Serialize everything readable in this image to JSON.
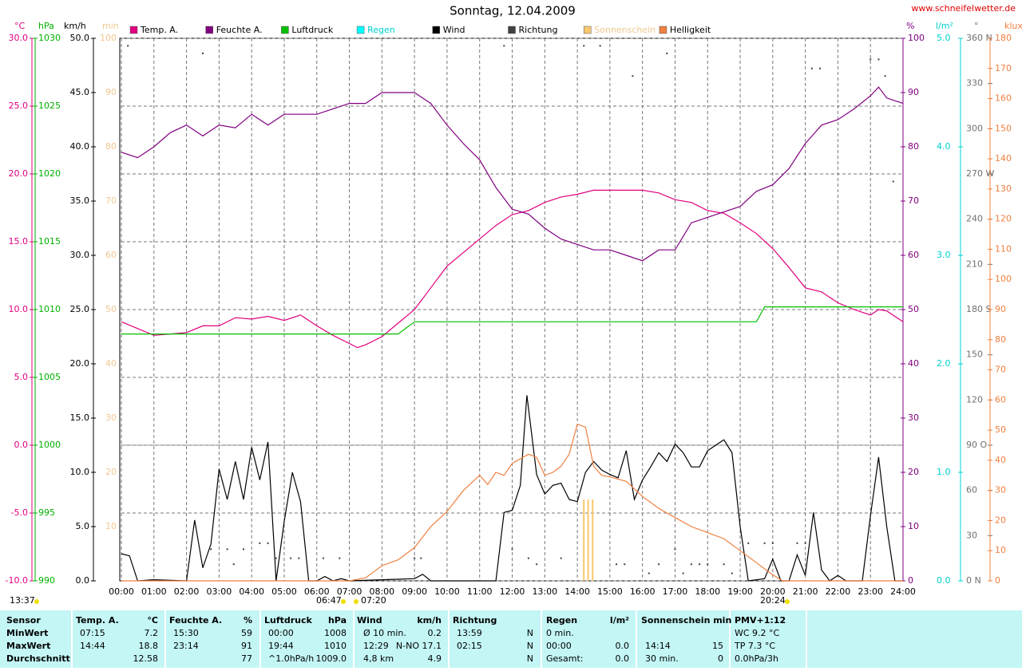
{
  "chart_data": {
    "type": "line",
    "title": "Sonntag, 12.04.2009",
    "source": "www.schneifelwetter.de",
    "grid": true,
    "xlim": [
      0,
      24
    ],
    "xticks": [
      {
        "value": 0,
        "label": "00:00"
      },
      {
        "value": 1,
        "label": "01:00"
      },
      {
        "value": 2,
        "label": "02:00"
      },
      {
        "value": 3,
        "label": "03:00"
      },
      {
        "value": 4,
        "label": "04:00"
      },
      {
        "value": 5,
        "label": "05:00"
      },
      {
        "value": 6,
        "label": "06:00"
      },
      {
        "value": 7,
        "label": "07:00"
      },
      {
        "value": 8,
        "label": "08:00"
      },
      {
        "value": 9,
        "label": "09:00"
      },
      {
        "value": 10,
        "label": "10:00"
      },
      {
        "value": 11,
        "label": "11:00"
      },
      {
        "value": 12,
        "label": "12:00"
      },
      {
        "value": 13,
        "label": "13:00"
      },
      {
        "value": 14,
        "label": "14:00"
      },
      {
        "value": 15,
        "label": "15:00"
      },
      {
        "value": 16,
        "label": "16:00"
      },
      {
        "value": 17,
        "label": "17:00"
      },
      {
        "value": 18,
        "label": "18:00"
      },
      {
        "value": 19,
        "label": "19:00"
      },
      {
        "value": 20,
        "label": "20:00"
      },
      {
        "value": 21,
        "label": "21:00"
      },
      {
        "value": 22,
        "label": "22:00"
      },
      {
        "value": 23,
        "label": "23:00"
      },
      {
        "value": 24,
        "label": "24:00"
      }
    ],
    "axes": {
      "temp": {
        "label": "°C",
        "color": "#e0007f",
        "lim": [
          -10,
          30
        ],
        "ticks": [
          {
            "value": 30,
            "label": "30.0"
          },
          {
            "value": 25,
            "label": "25.0"
          },
          {
            "value": 20,
            "label": "20.0"
          },
          {
            "value": 15,
            "label": "15.0"
          },
          {
            "value": 10,
            "label": "10.0"
          },
          {
            "value": 5,
            "label": "5.0"
          },
          {
            "value": 0,
            "label": "0.0"
          },
          {
            "value": -5,
            "label": "-5.0"
          },
          {
            "value": -10,
            "label": "-10.0"
          }
        ]
      },
      "hpa": {
        "label": "hPa",
        "color": "#00b000",
        "lim": [
          990,
          1030
        ],
        "ticks": [
          1030,
          1025,
          1020,
          1015,
          1010,
          1005,
          1000,
          995,
          990
        ]
      },
      "kmh": {
        "label": "km/h",
        "color": "#000000",
        "lim": [
          0,
          50
        ],
        "ticks": [
          {
            "value": 50,
            "label": "50.0"
          },
          {
            "value": 45,
            "label": "45.0"
          },
          {
            "value": 40,
            "label": "40.0"
          },
          {
            "value": 35,
            "label": "35.0"
          },
          {
            "value": 30,
            "label": "30.0"
          },
          {
            "value": 25,
            "label": "25.0"
          },
          {
            "value": 20,
            "label": "20.0"
          },
          {
            "value": 15,
            "label": "15.0"
          },
          {
            "value": 10,
            "label": "10.0"
          },
          {
            "value": 5,
            "label": "5.0"
          },
          {
            "value": 0,
            "label": "0.0"
          }
        ]
      },
      "min": {
        "label": "min",
        "color": "#f0c890",
        "lim": [
          0,
          100
        ],
        "ticks": [
          100,
          90,
          80,
          70,
          60,
          50,
          40,
          30,
          20,
          10
        ]
      },
      "pct": {
        "label": "%",
        "color": "#800080",
        "lim": [
          0,
          100
        ],
        "ticks": [
          100,
          90,
          80,
          70,
          60,
          50,
          40,
          30,
          20,
          10,
          0
        ]
      },
      "rain": {
        "label": "l/m²",
        "color": "#00d0d0",
        "lim": [
          0,
          5
        ],
        "ticks": [
          {
            "value": 5,
            "label": "5.0"
          },
          {
            "value": 4,
            "label": "4.0"
          },
          {
            "value": 3,
            "label": "3.0"
          },
          {
            "value": 2,
            "label": "2.0"
          },
          {
            "value": 1,
            "label": "1.0"
          },
          {
            "value": 0,
            "label": "0.0"
          }
        ]
      },
      "dir": {
        "label": "°",
        "color": "#707070",
        "lim": [
          0,
          360
        ],
        "ticks": [
          {
            "value": 360,
            "label": "360 N"
          },
          330,
          300,
          {
            "value": 270,
            "label": "270 W"
          },
          240,
          210,
          {
            "value": 180,
            "label": "180 S"
          },
          150,
          120,
          {
            "value": 90,
            "label": "90 O"
          },
          60,
          30,
          {
            "value": 0,
            "label": "0 N"
          }
        ]
      },
      "klux": {
        "label": "klux",
        "color": "#f08040",
        "lim": [
          0,
          180
        ],
        "ticks": [
          180,
          170,
          160,
          150,
          140,
          130,
          120,
          110,
          100,
          90,
          80,
          70,
          60,
          50,
          40,
          30,
          20,
          10,
          0
        ]
      }
    },
    "series": [
      {
        "name": "Temp. A.",
        "color": "#e0007f",
        "axis": "temp",
        "style": "line",
        "x": [
          0,
          0.5,
          1,
          1.5,
          2,
          2.5,
          3,
          3.5,
          4,
          4.5,
          5,
          5.5,
          6,
          6.5,
          7,
          7.25,
          7.5,
          8,
          8.5,
          9,
          9.5,
          10,
          10.5,
          11,
          11.5,
          12,
          12.5,
          13,
          13.5,
          14,
          14.5,
          15,
          15.5,
          16,
          16.5,
          17,
          17.5,
          18,
          18.5,
          19,
          19.5,
          20,
          20.5,
          21,
          21.5,
          22,
          22.5,
          23,
          23.25,
          23.5,
          24
        ],
        "values": [
          9.1,
          8.6,
          8.1,
          8.2,
          8.3,
          8.8,
          8.8,
          9.4,
          9.3,
          9.5,
          9.2,
          9.6,
          8.8,
          8.1,
          7.5,
          7.2,
          7.4,
          8.0,
          9.0,
          10.0,
          11.6,
          13.2,
          14.2,
          15.2,
          16.2,
          17.0,
          17.3,
          17.9,
          18.3,
          18.5,
          18.8,
          18.8,
          18.8,
          18.8,
          18.6,
          18.1,
          17.9,
          17.3,
          17.1,
          16.4,
          15.6,
          14.5,
          13.1,
          11.6,
          11.3,
          10.5,
          10.0,
          9.6,
          10.0,
          9.9,
          9.1
        ]
      },
      {
        "name": "Feuchte A.",
        "color": "#800080",
        "axis": "pct",
        "style": "line",
        "x": [
          0,
          0.5,
          1,
          1.5,
          2,
          2.5,
          3,
          3.5,
          4,
          4.5,
          5,
          5.5,
          6,
          6.5,
          7,
          7.5,
          8,
          8.5,
          9,
          9.5,
          10,
          10.5,
          11,
          11.5,
          12,
          12.5,
          13,
          13.5,
          14,
          14.5,
          15,
          15.5,
          16,
          16.5,
          17,
          17.5,
          18,
          18.5,
          19,
          19.5,
          20,
          20.5,
          21,
          21.5,
          22,
          22.5,
          23,
          23.25,
          23.5,
          24
        ],
        "values": [
          79,
          78,
          80,
          82.6,
          84,
          82,
          84,
          83.5,
          86,
          84,
          86,
          86,
          86,
          87,
          88,
          88,
          90,
          90,
          90,
          88,
          84,
          80.6,
          77.6,
          72.5,
          68.5,
          67.6,
          65,
          63,
          62,
          61,
          61,
          60,
          59,
          61,
          61,
          66,
          67,
          68,
          69,
          71.8,
          73,
          76,
          80.6,
          84,
          85,
          87,
          89.4,
          91,
          89,
          88
        ]
      },
      {
        "name": "Luftdruck",
        "color": "#00c000",
        "axis": "hpa",
        "style": "line",
        "x": [
          0,
          8.5,
          9,
          19.5,
          19.75,
          24
        ],
        "values": [
          1008.2,
          1008.2,
          1009.1,
          1009.1,
          1010.2,
          1010.2
        ]
      },
      {
        "name": "Regen",
        "color": "#00ffff",
        "text_color": "#00d0d0",
        "axis": "rain",
        "style": "line",
        "x": [],
        "values": []
      },
      {
        "name": "Wind",
        "color": "#000000",
        "axis": "kmh",
        "style": "line",
        "x": [
          0,
          0.25,
          0.5,
          1,
          2,
          2.25,
          2.5,
          2.75,
          3,
          3.25,
          3.5,
          3.75,
          4,
          4.25,
          4.5,
          4.75,
          5,
          5.25,
          5.5,
          5.75,
          6,
          6.25,
          6.5,
          6.75,
          7,
          9,
          9.25,
          9.5,
          11.5,
          11.75,
          12,
          12.25,
          12.45,
          12.75,
          13,
          13.25,
          13.5,
          13.75,
          14,
          14.25,
          14.5,
          14.75,
          15,
          15.25,
          15.5,
          15.75,
          16,
          16.25,
          16.5,
          16.75,
          17,
          17.25,
          17.5,
          17.75,
          18,
          18.25,
          18.5,
          18.75,
          19,
          19.25,
          19.75,
          20,
          20.25,
          20.5,
          20.75,
          21,
          21.25,
          21.5,
          21.75,
          22,
          22.25,
          22.75,
          23,
          23.25,
          23.5,
          23.75,
          24
        ],
        "values": [
          2.5,
          2.3,
          0,
          0.1,
          0,
          5.6,
          1.2,
          3.4,
          10.3,
          7.5,
          11,
          7.5,
          12.3,
          9.3,
          12.8,
          0,
          5.5,
          10,
          7.3,
          0,
          0,
          0.4,
          0,
          0.2,
          0,
          0.2,
          0.6,
          0,
          0,
          6.3,
          6.5,
          8.8,
          17.1,
          9.8,
          8,
          8.8,
          9,
          7.5,
          7.3,
          10,
          11,
          10.2,
          9.8,
          9.5,
          12,
          7.5,
          9.3,
          10.5,
          11.8,
          11,
          12.6,
          11.8,
          10.5,
          10.5,
          12,
          12.5,
          13,
          11.8,
          5,
          0,
          0.2,
          2,
          0,
          0,
          2.4,
          0.5,
          6.3,
          1,
          0,
          0.5,
          0,
          0,
          6,
          11.4,
          5,
          0,
          0
        ]
      },
      {
        "name": "Richtung",
        "color": "#404040",
        "axis": "dir",
        "style": "dot",
        "x": [
          0.2,
          2.5,
          2.75,
          3.25,
          3.45,
          3.75,
          4.25,
          4.5,
          4.75,
          5.2,
          5.45,
          6.2,
          6.7,
          9,
          9.2,
          11.75,
          12,
          12.5,
          12.75,
          13.5,
          14.2,
          14.7,
          15.2,
          15.45,
          15.7,
          16.2,
          16.5,
          16.75,
          17,
          17.25,
          17.5,
          17.75,
          18,
          18.5,
          18.75,
          19.25,
          19.75,
          20,
          20.75,
          21,
          21.2,
          21.45,
          23,
          23.25,
          23.45,
          23.7
        ],
        "values": [
          355,
          350,
          21,
          21,
          11,
          21,
          25,
          25,
          15,
          15,
          15,
          15,
          15,
          15,
          15,
          355,
          21,
          15,
          11,
          15,
          355,
          355,
          11,
          11,
          335,
          5,
          11,
          350,
          21,
          5,
          11,
          11,
          11,
          11,
          5,
          25,
          25,
          25,
          25,
          25,
          340,
          340,
          346,
          346,
          335,
          265
        ]
      },
      {
        "name": "Sonnenschein",
        "color": "#f8c870",
        "text_color": "#f0c890",
        "axis": "min",
        "style": "bar",
        "x": [
          14.2,
          14.33,
          14.47
        ],
        "values": [
          15,
          15,
          15
        ]
      },
      {
        "name": "Helligkeit",
        "color": "#f08040",
        "axis": "klux",
        "style": "line",
        "x": [
          0,
          7,
          7.5,
          8,
          8.5,
          9,
          9.5,
          10,
          10.5,
          11,
          11.25,
          11.5,
          11.75,
          12,
          12.5,
          12.75,
          13,
          13.25,
          13.5,
          13.75,
          14,
          14.25,
          14.5,
          14.75,
          15,
          15.5,
          16,
          16.5,
          17,
          17.5,
          18,
          18.5,
          19,
          19.5,
          20,
          20.3,
          24
        ],
        "values": [
          0,
          0,
          1,
          5,
          7,
          11,
          18,
          23,
          30,
          35,
          32,
          36,
          35,
          39,
          42,
          41,
          35,
          36,
          38,
          42,
          52,
          51,
          38,
          35,
          34.5,
          33,
          28,
          24,
          21,
          18,
          16,
          14,
          10,
          6,
          2,
          0,
          0
        ]
      }
    ],
    "annotations": [
      "13:37",
      "06:47",
      "07:20",
      "20:24"
    ]
  },
  "table": {
    "header": [
      "Sensor",
      "Temp. A.",
      "°C",
      "Feuchte A.",
      "%",
      "Luftdruck",
      "hPa",
      "Wind",
      "km/h",
      "Richtung",
      "Regen",
      "l/m²",
      "Sonnenschein min",
      "PMV+1:12"
    ],
    "rows": [
      [
        "MinWert",
        "07:15",
        "7.2",
        "15:30",
        "59",
        "00:00",
        "1008",
        "Ø 10 min.",
        "0.2",
        "13:59",
        "N",
        "0 min.",
        null,
        null,
        null,
        "WC 9.2 °C"
      ],
      [
        "MaxWert",
        "14:44",
        "18.8",
        "23:14",
        "91",
        "19:44",
        "1010",
        "12:29",
        "N-NO 17.1",
        "02:15",
        "N",
        "00:00",
        "0.0",
        "14:14",
        "15",
        "TP 7.3 °C"
      ],
      [
        "Durchschnitt",
        null,
        "12.58",
        null,
        "77",
        "^1.0hPa/h",
        "1009.0",
        "4,8 km",
        "4.9",
        null,
        "N",
        "Gesamt:",
        "0.0",
        "30 min.",
        "0",
        "0.0hPa/3h"
      ]
    ]
  }
}
